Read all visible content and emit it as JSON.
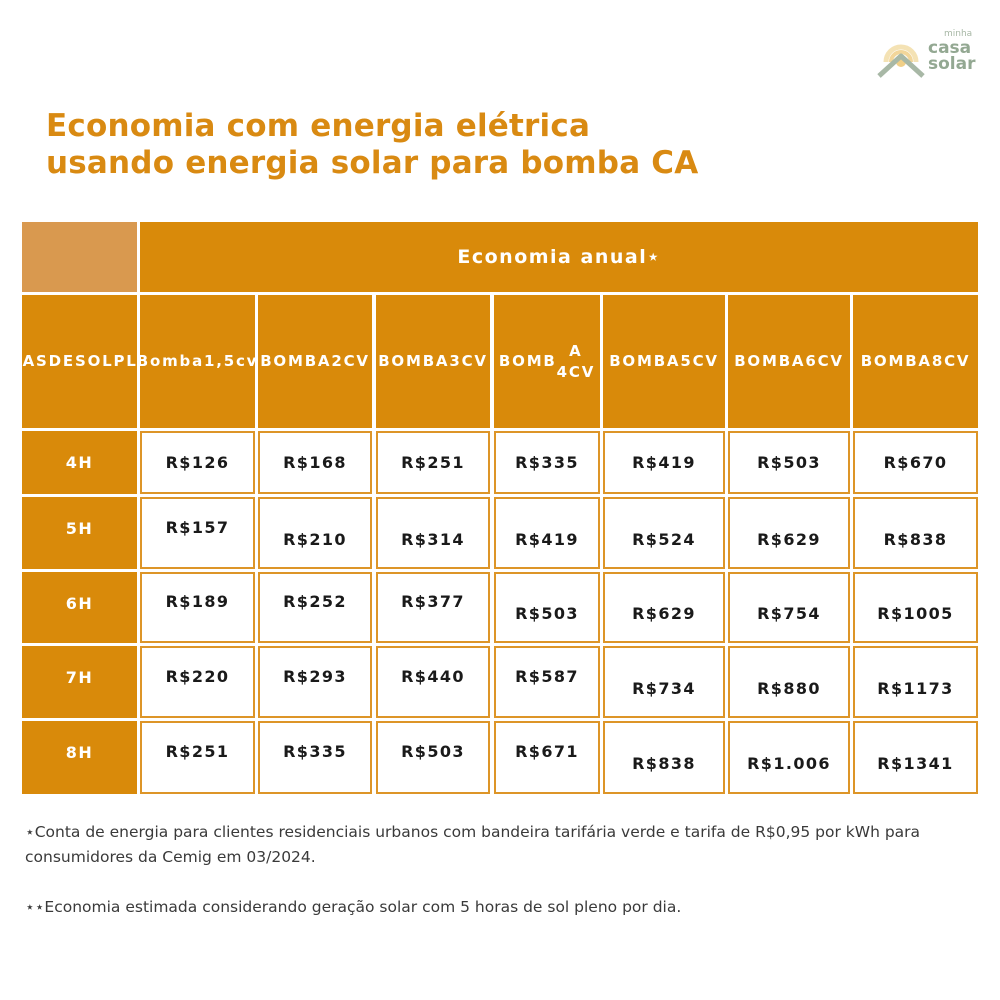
{
  "logo": {
    "line1": "minha",
    "line2": "casa",
    "line3": "solar",
    "colors": {
      "sun": "#f2d69a",
      "roof": "#a8b8a6"
    }
  },
  "title": {
    "line1": "Economia com energia elétrica",
    "line2": "usando energia solar para bomba CA"
  },
  "colors": {
    "title": "#d98a12",
    "header_bg": "#d98a0a",
    "corner_bg": "#d9994f",
    "cell_border": "#dd9528"
  },
  "table": {
    "group_header": "Economia anual⋆",
    "row_header_label": [
      "HORAS",
      "DE",
      "SOL",
      "PLENO"
    ],
    "columns": [
      [
        "Bomba",
        "1,5cv"
      ],
      [
        "BOMBA",
        "2CV"
      ],
      [
        "BOMBA",
        "3CV"
      ],
      [
        "BOMB",
        "A 4CV"
      ],
      [
        "BOMBA",
        "5CV"
      ],
      [
        "BOMBA",
        "6CV"
      ],
      [
        "BOMBA",
        "8CV"
      ]
    ],
    "rows": [
      {
        "label": "4H",
        "values": [
          "R$126",
          "R$168",
          "R$251",
          "R$335",
          "R$419",
          "R$503",
          "R$670"
        ]
      },
      {
        "label": "5H",
        "values": [
          "R$157",
          "R$210",
          "R$314",
          "R$419",
          "R$524",
          "R$629",
          "R$838"
        ]
      },
      {
        "label": "6H",
        "values": [
          "R$189",
          "R$252",
          "R$377",
          "R$503",
          "R$629",
          "R$754",
          "R$1005"
        ]
      },
      {
        "label": "7H",
        "values": [
          "R$220",
          "R$293",
          "R$440",
          "R$587",
          "R$734",
          "R$880",
          "R$1173"
        ]
      },
      {
        "label": "8H",
        "values": [
          "R$251",
          "R$335",
          "R$503",
          "R$671",
          "R$838",
          "R$1.006",
          "R$1341"
        ]
      }
    ]
  },
  "footnotes": {
    "note1": "⋆Conta de energia para clientes residenciais urbanos com bandeira tarifária verde e tarifa de R$0,95 por kWh para consumidores da Cemig em 03/2024.",
    "note2": "⋆⋆Economia estimada considerando geração solar com 5 horas de sol pleno por dia."
  }
}
